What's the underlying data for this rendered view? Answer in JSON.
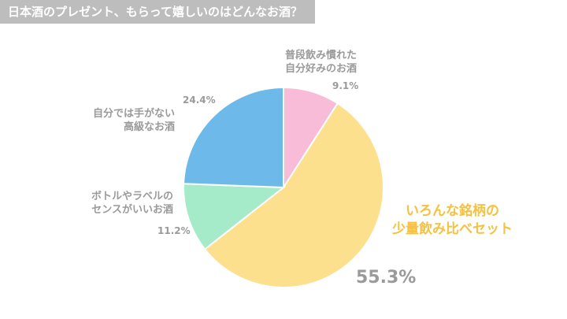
{
  "chart_data": {
    "type": "pie",
    "title": "日本酒のプレゼント、もらって嬉しいのはどんなお酒？",
    "categories": [
      "普段飲み慣れた\n自分好みのお酒",
      "いろんな銘柄の\n少量飲み比べセット",
      "ボトルやラベルの\nセンスがいいお酒",
      "自分では手がない\n高級なお酒"
    ],
    "values": [
      9.1,
      55.3,
      11.2,
      24.4
    ],
    "value_labels": [
      "9.1%",
      "55.3%",
      "11.2%",
      "24.4%"
    ],
    "colors": [
      "#f9bcd8",
      "#fde08e",
      "#a6ebc9",
      "#6cb9ea"
    ]
  }
}
